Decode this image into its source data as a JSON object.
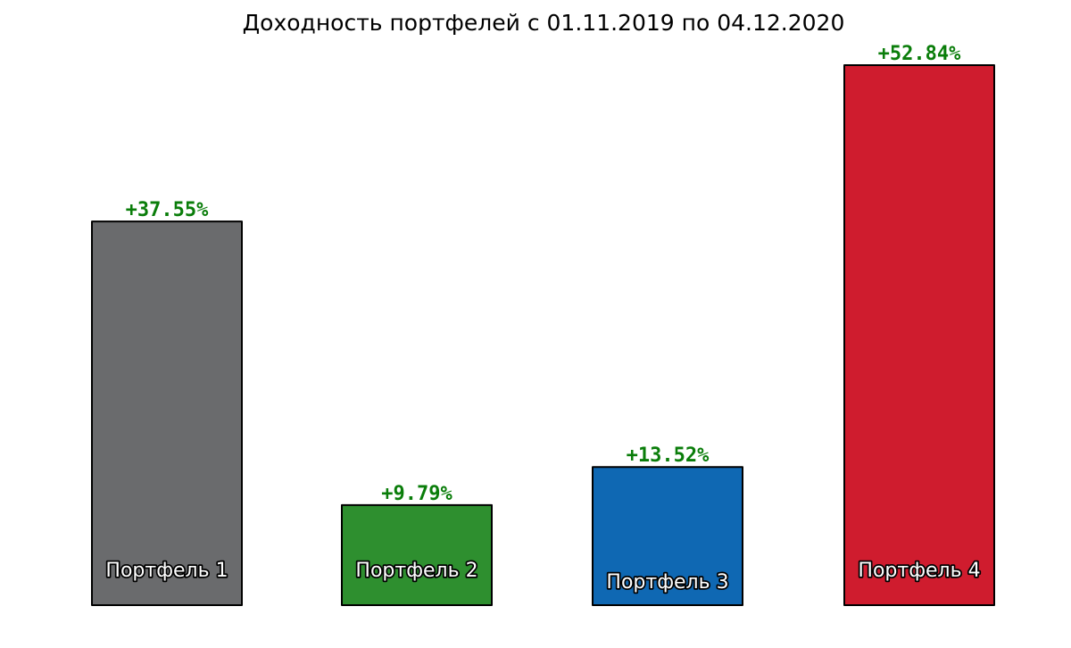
{
  "chart_data": {
    "type": "bar",
    "title": "Доходность портфелей с 01.11.2019 по 04.12.2020",
    "categories": [
      "Портфель 1",
      "Портфель 2",
      "Портфель 3",
      "Портфель 4"
    ],
    "values": [
      37.55,
      9.79,
      13.52,
      52.84
    ],
    "value_labels": [
      "+37.55%",
      "+9.79%",
      "+13.52%",
      "+52.84%"
    ],
    "bar_colors": [
      "#6a6b6d",
      "#2e8f2f",
      "#0f68b3",
      "#cf1c2e"
    ],
    "value_label_color": "#0a7d0a",
    "xlabel": "",
    "ylabel": "",
    "ylim": [
      0,
      52.84
    ],
    "grid": false,
    "axes_visible": false
  }
}
